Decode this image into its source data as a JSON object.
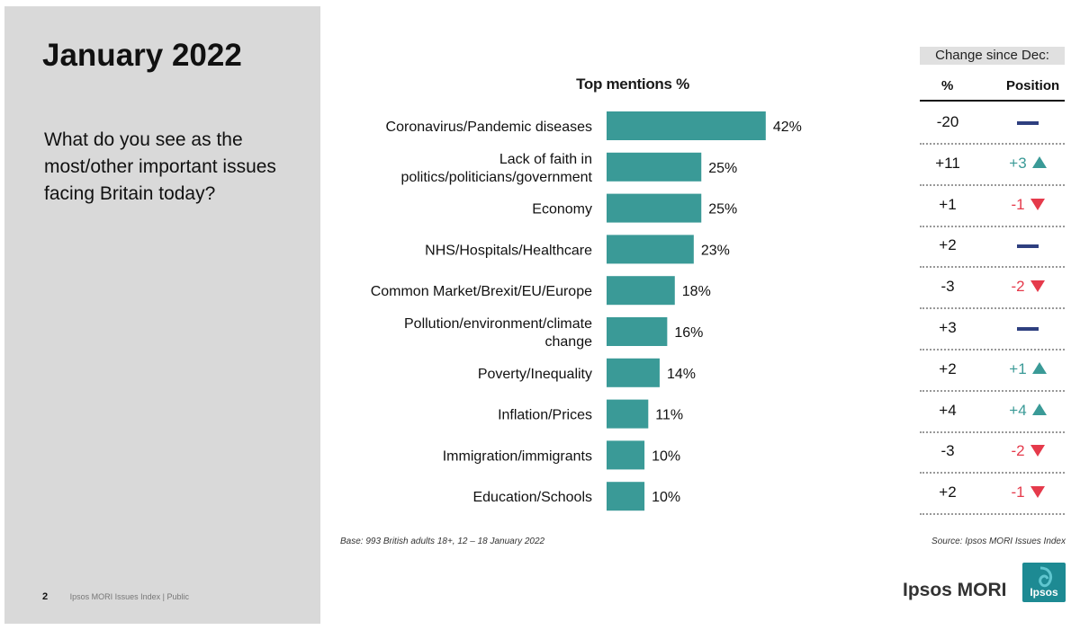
{
  "page": {
    "title": "January 2022",
    "question": "What do you see as the most/other important issues facing Britain today?",
    "footer_page": "2",
    "footer_text": "Ipsos MORI Issues Index | Public",
    "base_note": "Base: 993 British adults 18+, 12 – 18 January 2022",
    "source_note": "Source: Ipsos MORI Issues Index",
    "logo_text": "Ipsos MORI",
    "logo_badge_text": "Ipsos"
  },
  "change": {
    "header": "Change since Dec:",
    "col_pct": "%",
    "col_position": "Position",
    "rows": [
      {
        "pct": "-20",
        "position": "",
        "dir": "none"
      },
      {
        "pct": "+11",
        "position": "+3",
        "dir": "up"
      },
      {
        "pct": "+1",
        "position": "-1",
        "dir": "down"
      },
      {
        "pct": "+2",
        "position": "",
        "dir": "none"
      },
      {
        "pct": "-3",
        "position": "-2",
        "dir": "down"
      },
      {
        "pct": "+3",
        "position": "",
        "dir": "none"
      },
      {
        "pct": "+2",
        "position": "+1",
        "dir": "up"
      },
      {
        "pct": "+4",
        "position": "+4",
        "dir": "up"
      },
      {
        "pct": "-3",
        "position": "-2",
        "dir": "down"
      },
      {
        "pct": "+2",
        "position": "-1",
        "dir": "down"
      }
    ],
    "colors": {
      "up": "#3a9a97",
      "down": "#e53a4b",
      "none": "#2e3f7f"
    }
  },
  "chart_data": {
    "type": "bar",
    "orientation": "horizontal",
    "title": "Top mentions %",
    "categories": [
      "Coronavirus/Pandemic diseases",
      "Lack of faith in politics/politicians/government",
      "Economy",
      "NHS/Hospitals/Healthcare",
      "Common Market/Brexit/EU/Europe",
      "Pollution/environment/climate change",
      "Poverty/Inequality",
      "Inflation/Prices",
      "Immigration/immigrants",
      "Education/Schools"
    ],
    "category_lines": [
      [
        "Coronavirus/Pandemic diseases"
      ],
      [
        "Lack of faith in",
        "politics/politicians/government"
      ],
      [
        "Economy"
      ],
      [
        "NHS/Hospitals/Healthcare"
      ],
      [
        "Common Market/Brexit/EU/Europe"
      ],
      [
        "Pollution/environment/climate",
        "change"
      ],
      [
        "Poverty/Inequality"
      ],
      [
        "Inflation/Prices"
      ],
      [
        "Immigration/immigrants"
      ],
      [
        "Education/Schools"
      ]
    ],
    "values": [
      42,
      25,
      25,
      23,
      18,
      16,
      14,
      11,
      10,
      10
    ],
    "value_labels": [
      "42%",
      "25%",
      "25%",
      "23%",
      "18%",
      "16%",
      "14%",
      "11%",
      "10%",
      "10%"
    ],
    "bar_color": "#3a9a97",
    "xlim": [
      0,
      50
    ],
    "grid": false
  }
}
